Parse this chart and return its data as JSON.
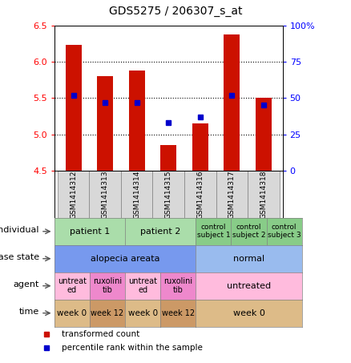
{
  "title": "GDS5275 / 206307_s_at",
  "samples": [
    "GSM1414312",
    "GSM1414313",
    "GSM1414314",
    "GSM1414315",
    "GSM1414316",
    "GSM1414317",
    "GSM1414318"
  ],
  "bar_values": [
    6.23,
    5.8,
    5.88,
    4.85,
    5.15,
    6.38,
    5.5
  ],
  "percentile_values": [
    52,
    47,
    47,
    33,
    37,
    52,
    45
  ],
  "ylim": [
    4.5,
    6.5
  ],
  "yticks": [
    4.5,
    5.0,
    5.5,
    6.0,
    6.5
  ],
  "y2lim": [
    0,
    100
  ],
  "y2ticks": [
    0,
    25,
    50,
    75,
    100
  ],
  "bar_color": "#cc1100",
  "point_color": "#0000cc",
  "bar_width": 0.5,
  "rows": [
    {
      "label": "individual",
      "cells": [
        {
          "text": "patient 1",
          "span": 2,
          "bg": "#aaddaa",
          "fontsize": 8
        },
        {
          "text": "patient 2",
          "span": 2,
          "bg": "#aaddaa",
          "fontsize": 8
        },
        {
          "text": "control\nsubject 1",
          "span": 1,
          "bg": "#88cc88",
          "fontsize": 6.5
        },
        {
          "text": "control\nsubject 2",
          "span": 1,
          "bg": "#88cc88",
          "fontsize": 6.5
        },
        {
          "text": "control\nsubject 3",
          "span": 1,
          "bg": "#88cc88",
          "fontsize": 6.5
        }
      ]
    },
    {
      "label": "disease state",
      "cells": [
        {
          "text": "alopecia areata",
          "span": 4,
          "bg": "#7799ee",
          "fontsize": 8
        },
        {
          "text": "normal",
          "span": 3,
          "bg": "#99bbee",
          "fontsize": 8
        }
      ]
    },
    {
      "label": "agent",
      "cells": [
        {
          "text": "untreat\ned",
          "span": 1,
          "bg": "#ffbbdd",
          "fontsize": 7
        },
        {
          "text": "ruxolini\ntib",
          "span": 1,
          "bg": "#ee88cc",
          "fontsize": 7
        },
        {
          "text": "untreat\ned",
          "span": 1,
          "bg": "#ffbbdd",
          "fontsize": 7
        },
        {
          "text": "ruxolini\ntib",
          "span": 1,
          "bg": "#ee88cc",
          "fontsize": 7
        },
        {
          "text": "untreated",
          "span": 3,
          "bg": "#ffbbdd",
          "fontsize": 8
        }
      ]
    },
    {
      "label": "time",
      "cells": [
        {
          "text": "week 0",
          "span": 1,
          "bg": "#ddbb88",
          "fontsize": 7.5
        },
        {
          "text": "week 12",
          "span": 1,
          "bg": "#cc9966",
          "fontsize": 7
        },
        {
          "text": "week 0",
          "span": 1,
          "bg": "#ddbb88",
          "fontsize": 7.5
        },
        {
          "text": "week 12",
          "span": 1,
          "bg": "#cc9966",
          "fontsize": 7
        },
        {
          "text": "week 0",
          "span": 3,
          "bg": "#ddbb88",
          "fontsize": 8
        }
      ]
    }
  ],
  "label_fontsize": 8,
  "title_fontsize": 10
}
